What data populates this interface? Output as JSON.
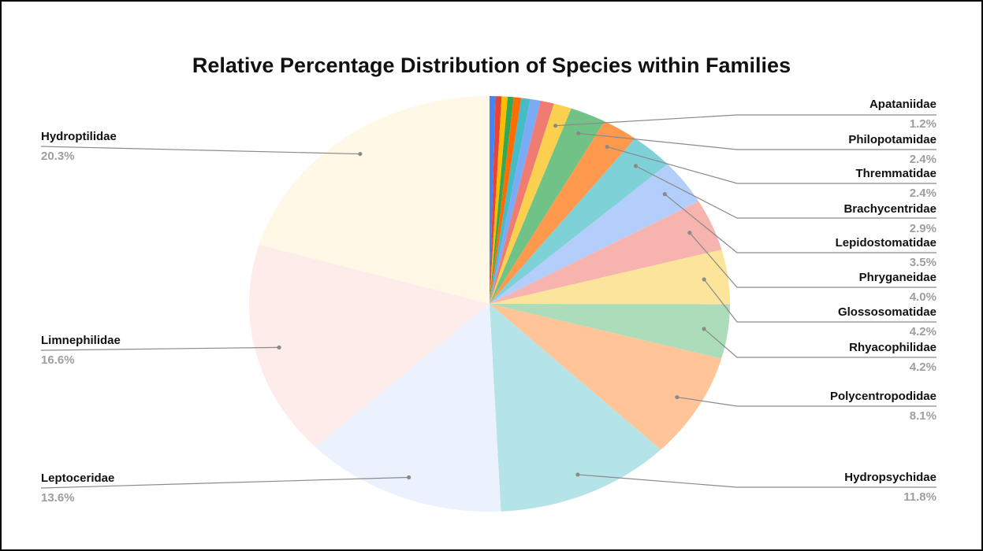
{
  "chart_data": {
    "type": "pie",
    "title": "Relative Percentage Distribution of Species within Families",
    "slices": [
      {
        "name": "",
        "value": 0.4,
        "color": "#4285f4"
      },
      {
        "name": "",
        "value": 0.4,
        "color": "#ea4335"
      },
      {
        "name": "",
        "value": 0.4,
        "color": "#fbbc04"
      },
      {
        "name": "",
        "value": 0.4,
        "color": "#34a853"
      },
      {
        "name": "",
        "value": 0.5,
        "color": "#ff6d01"
      },
      {
        "name": "",
        "value": 0.6,
        "color": "#46bdc6"
      },
      {
        "name": "",
        "value": 0.7,
        "color": "#7baaf7"
      },
      {
        "name": "",
        "value": 0.9,
        "color": "#f07b72"
      },
      {
        "name": "Apataniidae",
        "value": 1.2,
        "label": "1.2%",
        "color": "#fcd04f"
      },
      {
        "name": "Philopotamidae",
        "value": 2.4,
        "label": "2.4%",
        "color": "#71c287"
      },
      {
        "name": "Thremmatidae",
        "value": 2.4,
        "label": "2.4%",
        "color": "#ff994d"
      },
      {
        "name": "Brachycentridae",
        "value": 2.9,
        "label": "2.9%",
        "color": "#7ed1d7"
      },
      {
        "name": "Lepidostomatidae",
        "value": 3.5,
        "label": "3.5%",
        "color": "#b3cefb"
      },
      {
        "name": "Phryganeidae",
        "value": 4.0,
        "label": "4.0%",
        "color": "#f7b4ae"
      },
      {
        "name": "Glossosomatidae",
        "value": 4.2,
        "label": "4.2%",
        "color": "#fde49b"
      },
      {
        "name": "Rhyacophilidae",
        "value": 4.2,
        "label": "4.2%",
        "color": "#acdcb9"
      },
      {
        "name": "Polycentropodidae",
        "value": 8.1,
        "label": "8.1%",
        "color": "#ffc599"
      },
      {
        "name": "Hydropsychidae",
        "value": 11.8,
        "label": "11.8%",
        "color": "#b5e4e8"
      },
      {
        "name": "Leptoceridae",
        "value": 13.6,
        "label": "13.6%",
        "color": "#ebf2fe"
      },
      {
        "name": "Limnephilidae",
        "value": 16.6,
        "label": "16.6%",
        "color": "#feecea"
      },
      {
        "name": "Hydroptilidae",
        "value": 20.3,
        "label": "20.3%",
        "color": "#fff8e6"
      }
    ],
    "label_color": "#9e9e9e",
    "legend": "none"
  }
}
